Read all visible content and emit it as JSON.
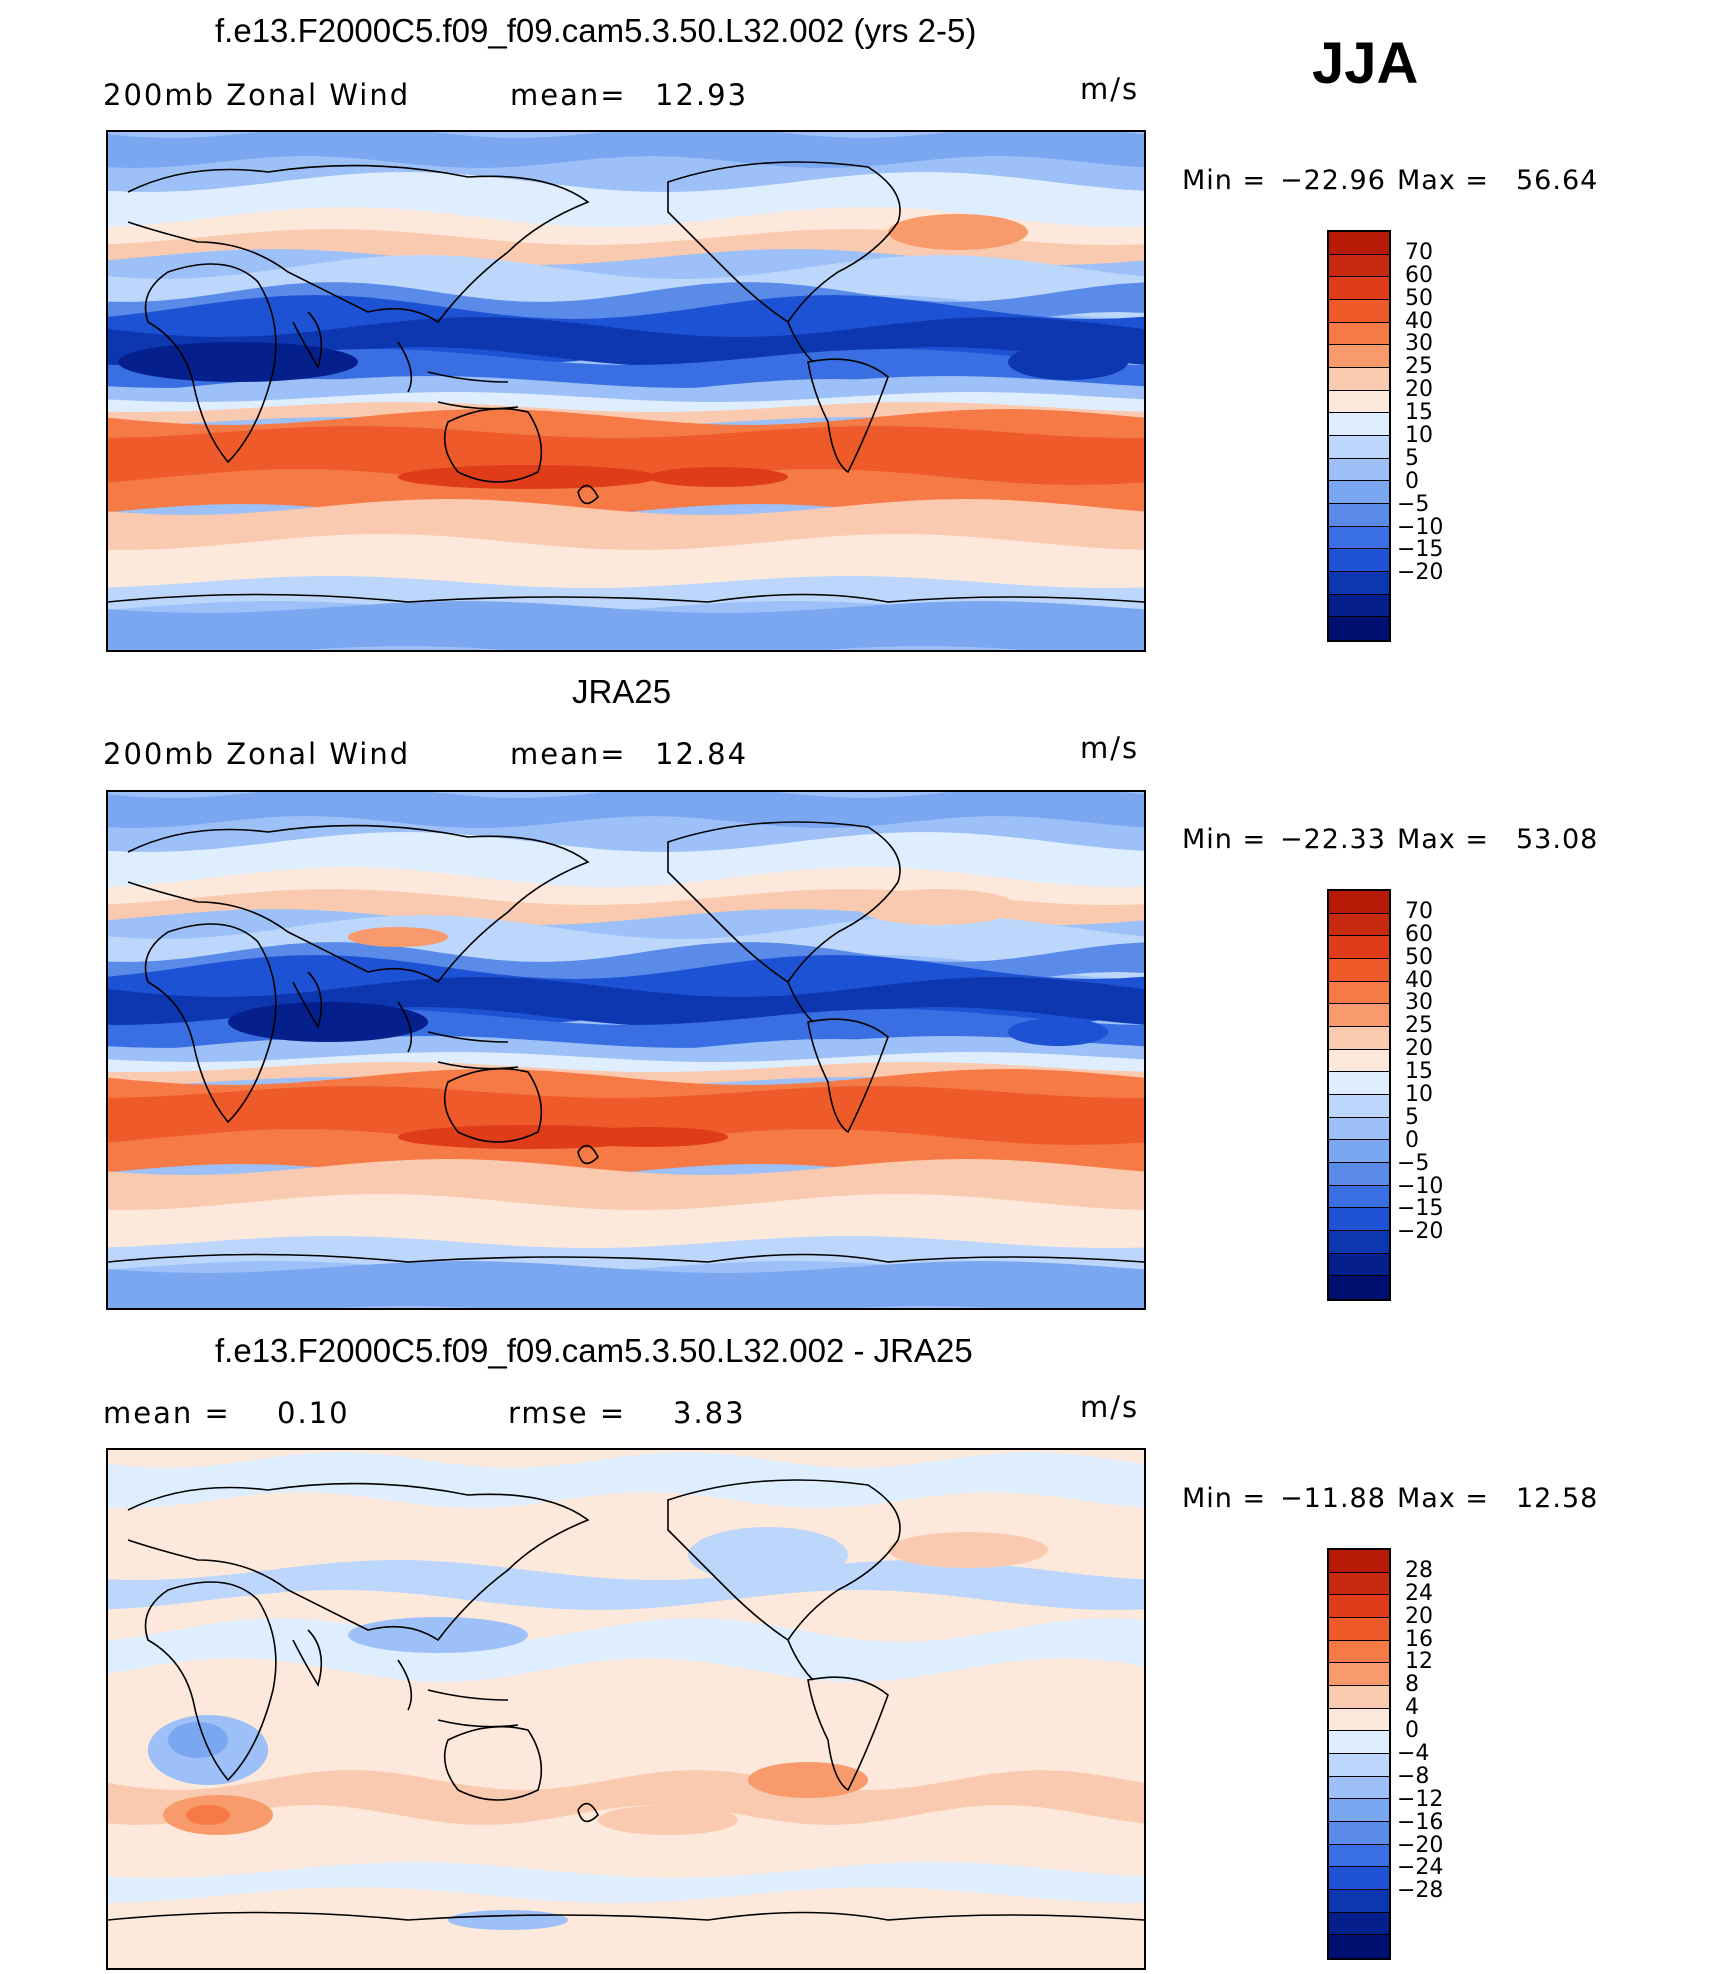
{
  "season": "JJA",
  "colorbar_main": {
    "colors": [
      "#b81a08",
      "#c82a10",
      "#df3c1a",
      "#ee5a2a",
      "#f57a46",
      "#f89a6c",
      "#facab0",
      "#fde9dc",
      "#dfeeff",
      "#bcd7fb",
      "#9cc0f7",
      "#7ba7f1",
      "#5a8be9",
      "#3a6fe3",
      "#1e52d4",
      "#0c37b0",
      "#05208c",
      "#001070"
    ],
    "labels": [
      "70",
      "60",
      "50",
      "40",
      "30",
      "25",
      "20",
      "15",
      "10",
      "5",
      "0",
      "−5",
      "−10",
      "−15",
      "−20"
    ]
  },
  "colorbar_diff": {
    "colors": [
      "#b81a08",
      "#c82a10",
      "#df3c1a",
      "#ee5a2a",
      "#f57a46",
      "#f89a6c",
      "#facab0",
      "#fde9dc",
      "#dfeeff",
      "#bcd7fb",
      "#9cc0f7",
      "#7ba7f1",
      "#5a8be9",
      "#3a6fe3",
      "#1e52d4",
      "#0c37b0",
      "#05208c",
      "#001070"
    ],
    "labels": [
      "28",
      "24",
      "20",
      "16",
      "12",
      "8",
      "4",
      "0",
      "−4",
      "−8",
      "−12",
      "−16",
      "−20",
      "−24",
      "−28"
    ]
  },
  "panels": [
    {
      "title": "f.e13.F2000C5.f09_f09.cam5.3.50.L32.002 (yrs 2-5)",
      "left_label": "200mb Zonal Wind",
      "mid_label": "mean=",
      "mid_value": "12.93",
      "units": "m/s",
      "min_label": "Min =",
      "min_value": "−22.96",
      "max_label": "Max =",
      "max_value": "56.64",
      "field_type": "model"
    },
    {
      "title": "JRA25",
      "left_label": "200mb Zonal Wind",
      "mid_label": "mean=",
      "mid_value": "12.84",
      "units": "m/s",
      "min_label": "Min =",
      "min_value": "−22.33",
      "max_label": "Max =",
      "max_value": "53.08",
      "field_type": "obs"
    },
    {
      "title": "f.e13.F2000C5.f09_f09.cam5.3.50.L32.002 - JRA25",
      "left_label": "mean =",
      "left_value": "0.10",
      "mid_label": "rmse =",
      "mid_value": "3.83",
      "units": "m/s",
      "min_label": "Min =",
      "min_value": "−11.88",
      "max_label": "Max =",
      "max_value": "12.58",
      "field_type": "diff"
    }
  ]
}
